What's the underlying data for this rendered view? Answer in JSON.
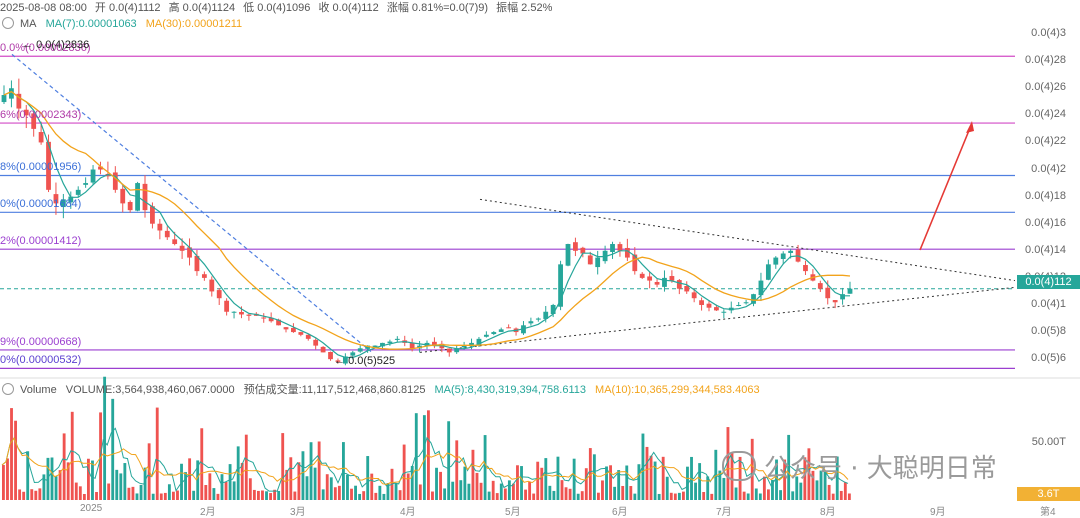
{
  "header": {
    "datetime": "2025-08-08 08:00",
    "open": "开 0.0(4)1112",
    "high": "高 0.0(4)1124",
    "low": "低 0.0(4)1096",
    "close": "收 0.0(4)112",
    "change": "涨幅 0.81%=0.0(7)9)",
    "amplitude": "振幅 2.52%"
  },
  "ma": {
    "label": "MA",
    "ma7": "MA(7):0.00001063",
    "ma30": "MA(30):0.00001211",
    "color_ma7": "#26a69a",
    "color_ma30": "#f2a31b"
  },
  "volume": {
    "label": "Volume",
    "volume": "VOLUME:3,564,938,460,067.0000",
    "estimate": "预估成交量:11,117,512,468,860.8125",
    "ma5": "MA(5):8,430,319,394,758.6113",
    "ma10": "MA(10):10,365,299,344,583.4063",
    "scale_label": "50.00T",
    "current_tag": "3.6T"
  },
  "price_axis": {
    "ticks": [
      "0.0(4)3",
      "0.0(4)28",
      "0.0(4)26",
      "0.0(4)24",
      "0.0(4)22",
      "0.0(4)2",
      "0.0(4)18",
      "0.0(4)16",
      "0.0(4)14",
      "0.0(4)12",
      "0.0(4)1",
      "0.0(5)8",
      "0.0(5)6"
    ],
    "current_price": "0.0(4)112"
  },
  "fib_labels": [
    {
      "text": "0.0%(0.00002836)",
      "color": "#b03aa8"
    },
    {
      "text": "6%(0.00002343)",
      "color": "#b03aa8"
    },
    {
      "text": "8%(0.00001956)",
      "color": "#3a6fd8"
    },
    {
      "text": "0%(0.00001684)",
      "color": "#3a6fd8"
    },
    {
      "text": "2%(0.00001412)",
      "color": "#9b3fd0"
    },
    {
      "text": "9%(0.00000668)",
      "color": "#9b3fd0"
    },
    {
      "text": "0%(0.00000532)",
      "color": "#5a3fd0"
    }
  ],
  "annotations": {
    "high_marker": "0.0(4)2836",
    "low_marker": "0.0(5)525"
  },
  "x_ticks": [
    "2025",
    "2月",
    "3月",
    "4月",
    "5月",
    "6月",
    "7月",
    "8月",
    "9月",
    "第4"
  ],
  "watermark": "公众号 · 大聪明日常",
  "colors": {
    "up": "#26a69a",
    "down": "#ef5350",
    "fib_magenta": "#d24bc6",
    "fib_blue": "#4f7fe0",
    "fib_purple": "#9b3fd0",
    "arrow": "#e53935"
  },
  "chart_data": {
    "type": "candlestick",
    "y_scale": "price",
    "ylim": [
      5.2e-06,
      3.03e-05
    ],
    "fib_levels": [
      2.836e-05,
      2.343e-05,
      1.956e-05,
      1.684e-05,
      1.412e-05,
      6.68e-06,
      5.32e-06
    ],
    "current_price": 1.12e-05,
    "period_high": 2.836e-05,
    "period_low": 5.25e-06,
    "trend": "descending-then-symmetrical-triangle",
    "close_path": [
      2.55e-05,
      2.6e-05,
      2.45e-05,
      2.4e-05,
      2.3e-05,
      2.2e-05,
      1.85e-05,
      1.75e-05,
      1.78e-05,
      1.8e-05,
      1.85e-05,
      1.9e-05,
      2e-05,
      2e-05,
      1.95e-05,
      1.85e-05,
      1.75e-05,
      1.7e-05,
      1.9e-05,
      1.7e-05,
      1.6e-05,
      1.55e-05,
      1.5e-05,
      1.45e-05,
      1.4e-05,
      1.35e-05,
      1.25e-05,
      1.2e-05,
      1.1e-05,
      1.05e-05,
      9.5e-06,
      9.5e-06,
      9.3e-06,
      9.2e-06,
      9.2e-06,
      9e-06,
      8.8e-06,
      8.5e-06,
      8.2e-06,
      8e-06,
      7.8e-06,
      7.5e-06,
      7e-06,
      6.5e-06,
      6e-06,
      5.8e-06,
      6.2e-06,
      6.5e-06,
      6.8e-06,
      7e-06,
      7e-06,
      7.2e-06,
      7.3e-06,
      7.5e-06,
      7.2e-06,
      6.8e-06,
      7e-06,
      7.2e-06,
      7e-06,
      6.8e-06,
      6.5e-06,
      6.8e-06,
      7e-06,
      7.2e-06,
      7.5e-06,
      7.8e-06,
      8e-06,
      8.2e-06,
      8.3e-06,
      8e-06,
      8.5e-06,
      8.8e-06,
      9e-06,
      9.5e-06,
      1e-05,
      1.3e-05,
      1.45e-05,
      1.4e-05,
      1.38e-05,
      1.3e-05,
      1.35e-05,
      1.4e-05,
      1.45e-05,
      1.4e-05,
      1.35e-05,
      1.25e-05,
      1.2e-05,
      1.18e-05,
      1.15e-05,
      1.2e-05,
      1.18e-05,
      1.12e-05,
      1.1e-05,
      1.05e-05,
      1e-05,
      9.8e-06,
      9.6e-06,
      9.5e-06,
      9.8e-06,
      1e-05,
      1.02e-05,
      1.08e-05,
      1.18e-05,
      1.3e-05,
      1.35e-05,
      1.38e-05,
      1.4e-05,
      1.32e-05,
      1.25e-05,
      1.18e-05,
      1.12e-05,
      1.05e-05,
      1.02e-05,
      1.08e-05,
      1.12e-05
    ]
  }
}
